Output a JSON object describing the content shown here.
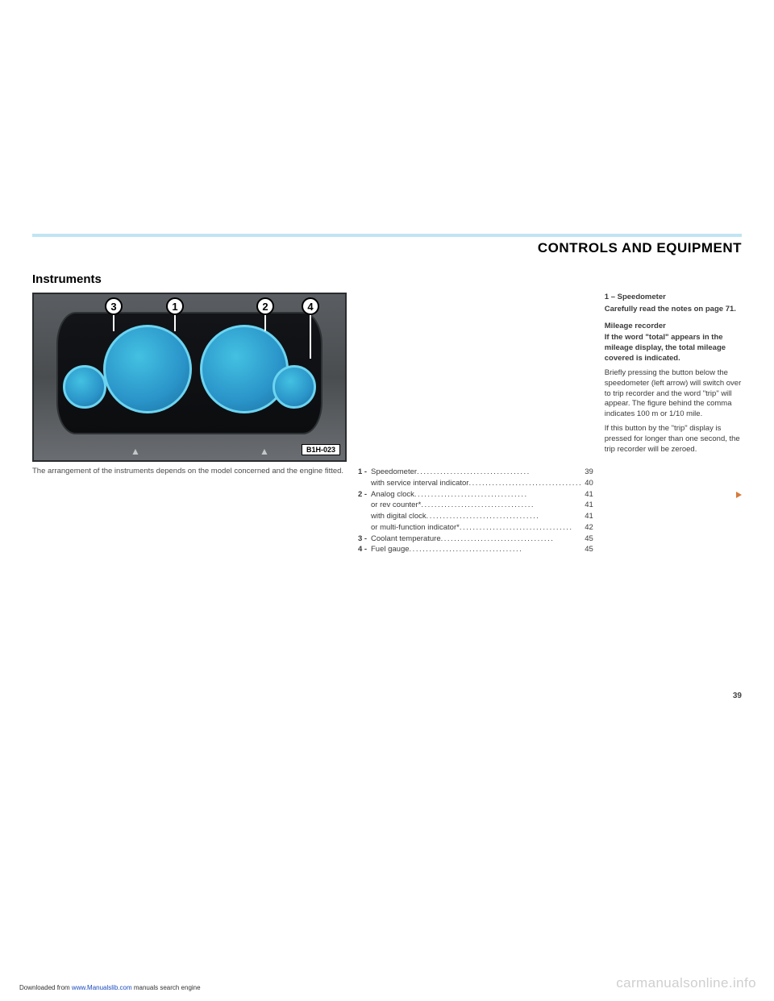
{
  "header": {
    "title": "CONTROLS AND EQUIPMENT"
  },
  "section": {
    "title": "Instruments"
  },
  "figure": {
    "label": "B1H-023",
    "callouts": [
      "3",
      "1",
      "2",
      "4"
    ],
    "caption_text": "The arrangement of the instruments depends on the model concerned and the engine fitted.",
    "cluster_colors": {
      "bg_dark": "#0b0d0f",
      "dial_face": "#2a94c9",
      "dial_rim": "#6dd4f0"
    }
  },
  "toc": [
    {
      "idx": "1 -",
      "text": "Speedometer",
      "page": "39"
    },
    {
      "idx": "",
      "text": "with service interval indicator",
      "page": "40"
    },
    {
      "idx": "2 -",
      "text": "Analog clock",
      "page": "41"
    },
    {
      "idx": "",
      "text": "or rev counter*",
      "page": "41"
    },
    {
      "idx": "",
      "text": "with digital clock",
      "page": "41"
    },
    {
      "idx": "",
      "text": "or multi-function indicator*",
      "page": "42"
    },
    {
      "idx": "3 -",
      "text": "Coolant temperature",
      "page": "45"
    },
    {
      "idx": "4 -",
      "text": "Fuel gauge",
      "page": "45"
    }
  ],
  "body": {
    "h1": "1 – Speedometer",
    "p1": "Carefully read the notes on page 71.",
    "h2": "Mileage recorder",
    "p2": "If the word \"total\" appears in the mileage display, the total mileage covered is indicated.",
    "p3": "Briefly pressing the button below the speedometer (left arrow) will switch over to trip recorder and the word \"trip\" will appear. The figure behind the comma indicates 100 m or 1/10 mile.",
    "p4": "If this button by the \"trip\" display is pressed for longer than one second, the trip recorder will be zeroed."
  },
  "page_number": "39",
  "footer": {
    "prefix": "Downloaded from ",
    "link": "www.Manualslib.com",
    "suffix": " manuals search engine"
  },
  "watermark": "carmanualsonline.info"
}
